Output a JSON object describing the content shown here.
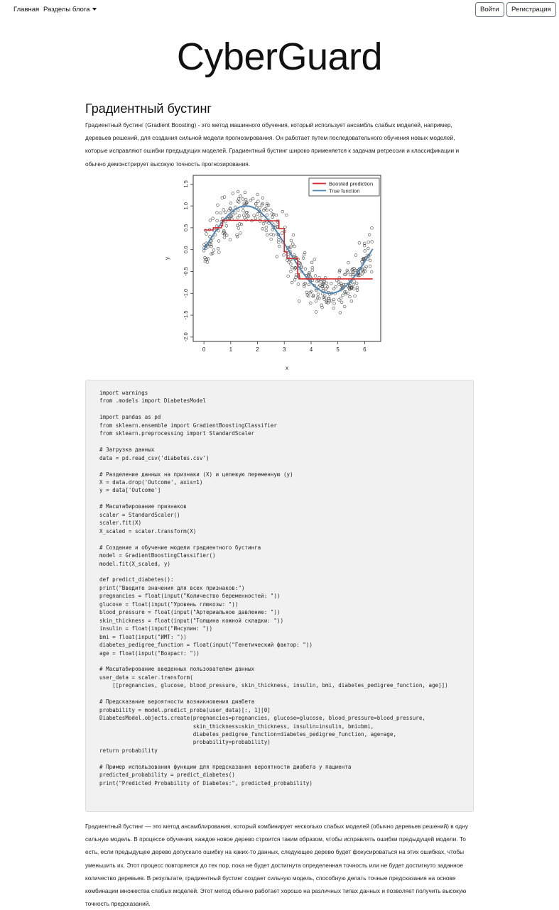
{
  "nav": {
    "home": "Главная",
    "sections": "Разделы блога",
    "login": "Войти",
    "register": "Регистрация"
  },
  "brand": "CyberGuard",
  "article": {
    "title": "Градиентный бустинг",
    "intro": "Градиентный бустинг (Gradient Boosting) - это метод машинного обучения, который использует ансамбль слабых моделей, например, деревьев решений, для создания сильной модели прогнозирования. Он работает путем последовательного обучения новых моделей, которые исправляют ошибки предыдущих моделей. Градиентный бустинг широко применяется к задачам регрессии и классификации и обычно демонстрирует высокую точность прогнозирования.",
    "code": "import warnings\nfrom .models import DiabetesModel\n\nimport pandas as pd\nfrom sklearn.ensemble import GradientBoostingClassifier\nfrom sklearn.preprocessing import StandardScaler\n\n# Загрузка данных\ndata = pd.read_csv('diabetes.csv')\n\n# Разделение данных на признаки (X) и целевую переменную (y)\nX = data.drop('Outcome', axis=1)\ny = data['Outcome']\n\n# Масштабирование признаков\nscaler = StandardScaler()\nscaler.fit(X)\nX_scaled = scaler.transform(X)\n\n# Создание и обучение модели градиентного бустинга\nmodel = GradientBoostingClassifier()\nmodel.fit(X_scaled, y)\n\ndef predict_diabetes():\nprint(\"Введите значения для всех признаков:\")\npregnancies = float(input(\"Количество беременностей: \"))\nglucose = float(input(\"Уровень глюкозы: \"))\nblood_pressure = float(input(\"Артериальное давление: \"))\nskin_thickness = float(input(\"Толщина кожной складки: \"))\ninsulin = float(input(\"Инсулин: \"))\nbmi = float(input(\"ИМТ: \"))\ndiabetes_pedigree_function = float(input(\"Генетический фактор: \"))\nage = float(input(\"Возраст: \"))\n\n# Масштабирование введенных пользователем данных\nuser_data = scaler.transform(\n    [[pregnancies, glucose, blood_pressure, skin_thickness, insulin, bmi, diabetes_pedigree_function, age]])\n\n# Предсказание вероятности возникновения диабета\nprobability = model.predict_proba(user_data)[:, 1][0]\nDiabetesModel.objects.create(pregnancies=pregnancies, glucose=glucose, blood_pressure=blood_pressure,\n                             skin_thickness=skin_thickness, insulin=insulin, bmi=bmi,\n                             diabetes_pedigree_function=diabetes_pedigree_function, age=age,\n                             probability=probability)\nreturn probability\n\n# Пример использования функции для предсказания вероятности диабета у пациента\npredicted_probability = predict_diabetes()\nprint(\"Predicted Probability of Diabetes:\", predicted_probability)",
    "outro": "Градиентный бустинг — это метод ансамблирования, который комбинирует несколько слабых моделей (обычно деревьев решений) в одну сильную модель. В процессе обучения, каждое новое дерево строится таким образом, чтобы исправлять ошибки предыдущей модели. То есть, если предыдущее дерево допускало ошибку на каких-то данных, следующее дерево будет фокусироваться на этих ошибках, чтобы уменьшить их. Этот процесс повторяется до тех пор, пока не будет достигнута определенная точность или не будет достигнуто заданное количество деревьев. В результате, градиентный бустинг создает сильную модель, способную делать точные предсказания на основе комбинации множества слабых моделей. Этот метод обычно работает хорошо на различных типах данных и позволяет получить высокую точность предсказаний."
  },
  "chart_data": {
    "type": "scatter",
    "xlabel": "x",
    "ylabel": "y",
    "xlim": [
      -0.4,
      6.6
    ],
    "ylim": [
      -2.1,
      1.7
    ],
    "xticks": [
      "0",
      "1",
      "2",
      "3",
      "4",
      "5",
      "6"
    ],
    "yticks": [
      "-2.0",
      "-1.5",
      "-1.0",
      "-0.5",
      "0.0",
      "0.5",
      "1.0",
      "1.5"
    ],
    "grid": false,
    "legend_position": "top-right",
    "colors": {
      "boosted": "#d62728",
      "true": "#4f86b8",
      "points": "#444444"
    },
    "series": [
      {
        "name": "Boosted prediction",
        "type": "step",
        "x": [
          0.0,
          0.35,
          0.35,
          0.65,
          0.65,
          0.7,
          0.7,
          2.15,
          2.15,
          2.8,
          2.8,
          3.0,
          3.0,
          3.1,
          3.1,
          3.5,
          3.5,
          3.55,
          3.55,
          6.3
        ],
        "y": [
          0.45,
          0.45,
          0.5,
          0.5,
          0.55,
          0.55,
          0.67,
          0.67,
          0.66,
          0.66,
          0.48,
          0.48,
          -0.05,
          -0.05,
          -0.2,
          -0.2,
          -0.55,
          -0.55,
          -0.67,
          -0.67
        ]
      },
      {
        "name": "True function",
        "type": "line",
        "function": "sin(x)",
        "x_range": [
          0,
          6.3
        ]
      },
      {
        "name": "observations",
        "type": "scatter",
        "description_count": 400,
        "noise_sd": 0.25
      }
    ]
  }
}
